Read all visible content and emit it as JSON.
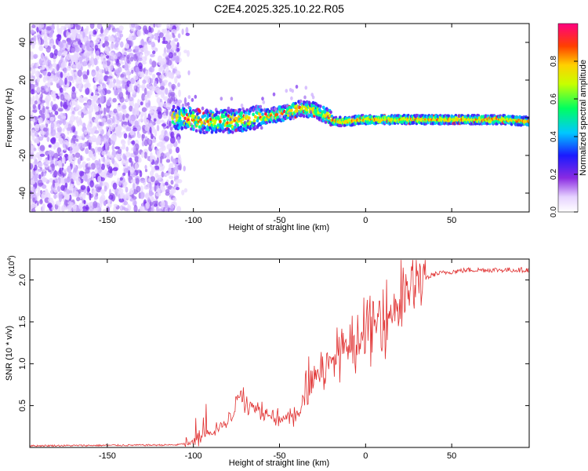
{
  "title": "C2E4.2025.325.10.22.R05",
  "chart_data": [
    {
      "type": "heatmap",
      "xlabel": "Height of straight line (km)",
      "ylabel": "Frequency (Hz)",
      "xlim": [
        -195,
        95
      ],
      "ylim": [
        -50,
        50
      ],
      "xticks": [
        -150,
        -100,
        -50,
        0,
        50
      ],
      "yticks": [
        -40,
        -20,
        0,
        20,
        40
      ],
      "colorbar": {
        "label": "Normalized spectral amplitude",
        "range": [
          0,
          1
        ],
        "ticks": [
          0.0,
          0.2,
          0.4,
          0.6,
          0.8
        ]
      },
      "ridge_frequency_hz": [
        [
          -105,
          0
        ],
        [
          -95,
          -2
        ],
        [
          -85,
          -2
        ],
        [
          -75,
          -2
        ],
        [
          -65,
          0
        ],
        [
          -55,
          1
        ],
        [
          -45,
          3
        ],
        [
          -38,
          5
        ],
        [
          -30,
          4
        ],
        [
          -22,
          1
        ],
        [
          -18,
          -2
        ],
        [
          -10,
          -2
        ],
        [
          -3,
          -1
        ],
        [
          5,
          -1
        ],
        [
          20,
          -1
        ],
        [
          40,
          -1
        ],
        [
          60,
          -1
        ],
        [
          80,
          -1
        ],
        [
          95,
          -2
        ]
      ]
    },
    {
      "type": "line",
      "xlabel": "Height of straight line (km)",
      "ylabel": "SNR (10 * v/v)",
      "multiplier": "(x10^4)",
      "multiplier_base": "(x10",
      "multiplier_exp": "4",
      "xlim": [
        -195,
        95
      ],
      "ylim": [
        0,
        2.25
      ],
      "xticks": [
        -150,
        -100,
        -50,
        0,
        50
      ],
      "yticks": [
        0.5,
        1.0,
        1.5,
        2.0
      ],
      "series": [
        {
          "name": "SNR",
          "color": "#e03030",
          "envelope": [
            [
              -195,
              0.02
            ],
            [
              -110,
              0.03
            ],
            [
              -100,
              0.06
            ],
            [
              -92,
              0.18
            ],
            [
              -85,
              0.25
            ],
            [
              -80,
              0.3
            ],
            [
              -75,
              0.55
            ],
            [
              -72,
              0.7
            ],
            [
              -68,
              0.5
            ],
            [
              -60,
              0.45
            ],
            [
              -50,
              0.35
            ],
            [
              -45,
              0.35
            ],
            [
              -38,
              0.4
            ],
            [
              -35,
              0.7
            ],
            [
              -30,
              0.85
            ],
            [
              -25,
              0.95
            ],
            [
              -20,
              1.0
            ],
            [
              -15,
              1.15
            ],
            [
              -10,
              1.2
            ],
            [
              -5,
              1.3
            ],
            [
              0,
              1.35
            ],
            [
              5,
              1.45
            ],
            [
              10,
              1.55
            ],
            [
              15,
              1.6
            ],
            [
              20,
              1.75
            ],
            [
              25,
              1.85
            ],
            [
              30,
              1.95
            ],
            [
              35,
              2.02
            ],
            [
              40,
              2.07
            ],
            [
              50,
              2.1
            ],
            [
              60,
              2.12
            ],
            [
              95,
              2.12
            ]
          ]
        }
      ]
    }
  ]
}
